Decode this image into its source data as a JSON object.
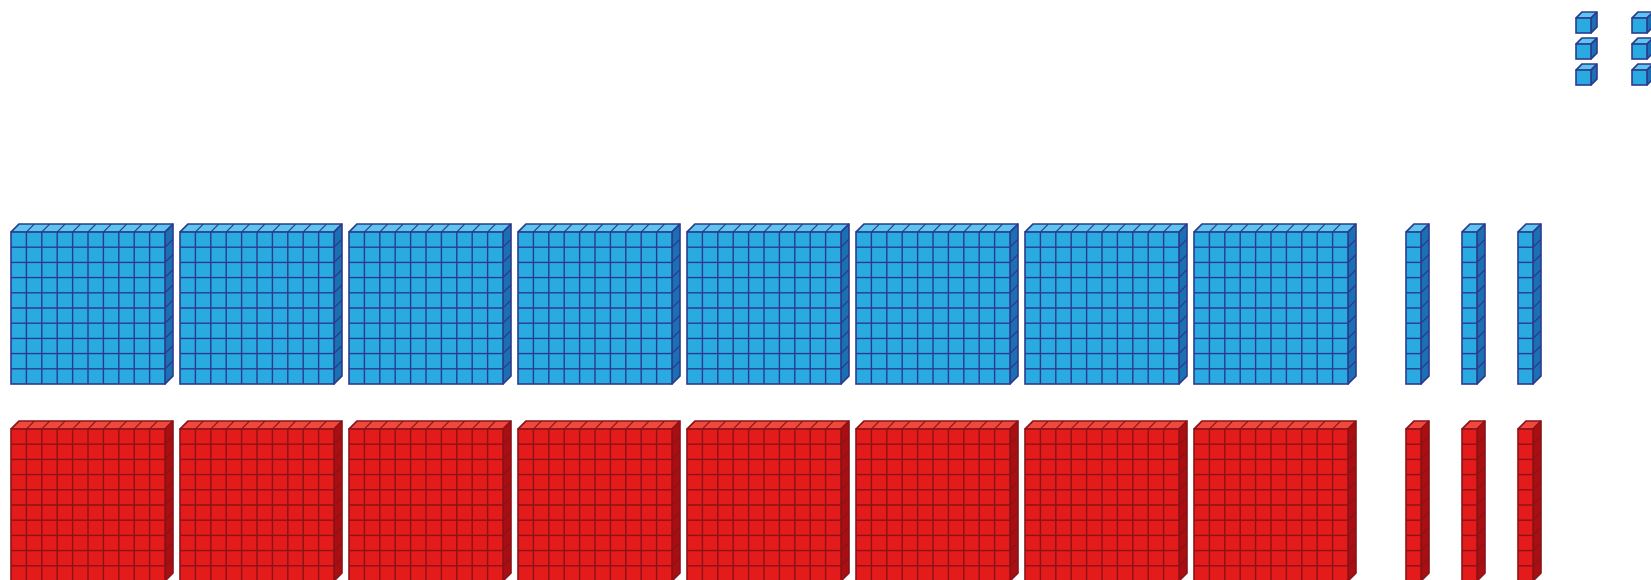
{
  "blocks": {
    "unit_cubes": {
      "count": 6,
      "color": "blue"
    },
    "blue_row": {
      "flats": 8,
      "rods": 3,
      "color": "blue"
    },
    "red_row": {
      "flats": 8,
      "rods": 3,
      "color": "red"
    }
  },
  "palette": {
    "blue": {
      "face": "#29abe2",
      "top": "#5ec5ef",
      "side": "#1b6fb3",
      "line": "#2b3a8c"
    },
    "red": {
      "face": "#e31b1b",
      "top": "#f0483c",
      "side": "#a90f12",
      "line": "#8a1218"
    }
  }
}
